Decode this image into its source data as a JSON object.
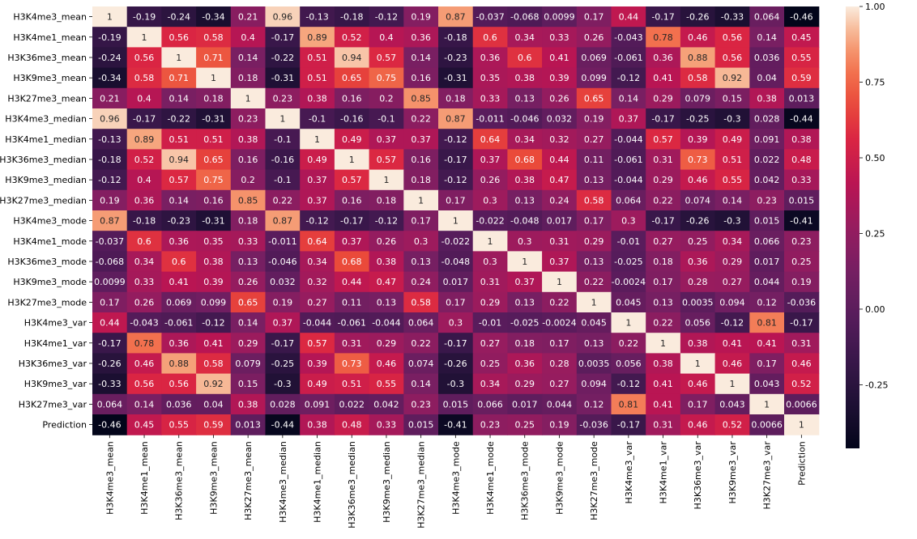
{
  "chart_data": {
    "type": "heatmap",
    "title": "",
    "xlabel": "",
    "ylabel": "",
    "labels": [
      "H3K4me3_mean",
      "H3K4me1_mean",
      "H3K36me3_mean",
      "H3K9me3_mean",
      "H3K27me3_mean",
      "H3K4me3_median",
      "H3K4me1_median",
      "H3K36me3_median",
      "H3K9me3_median",
      "H3K27me3_median",
      "H3K4me3_mode",
      "H3K4me1_mode",
      "H3K36me3_mode",
      "H3K9me3_mode",
      "H3K27me3_mode",
      "H3K4me3_var",
      "H3K4me1_var",
      "H3K36me3_var",
      "H3K9me3_var",
      "H3K27me3_var",
      "Prediction"
    ],
    "values": [
      [
        1,
        -0.19,
        -0.24,
        -0.34,
        0.21,
        0.96,
        -0.13,
        -0.18,
        -0.12,
        0.19,
        0.87,
        -0.037,
        -0.068,
        0.0099,
        0.17,
        0.44,
        -0.17,
        -0.26,
        -0.33,
        0.064,
        -0.46
      ],
      [
        -0.19,
        1,
        0.56,
        0.58,
        0.4,
        -0.17,
        0.89,
        0.52,
        0.4,
        0.36,
        -0.18,
        0.6,
        0.34,
        0.33,
        0.26,
        -0.043,
        0.78,
        0.46,
        0.56,
        0.14,
        0.45
      ],
      [
        -0.24,
        0.56,
        1,
        0.71,
        0.14,
        -0.22,
        0.51,
        0.94,
        0.57,
        0.14,
        -0.23,
        0.36,
        0.6,
        0.41,
        0.069,
        -0.061,
        0.36,
        0.88,
        0.56,
        0.036,
        0.55
      ],
      [
        -0.34,
        0.58,
        0.71,
        1,
        0.18,
        -0.31,
        0.51,
        0.65,
        0.75,
        0.16,
        -0.31,
        0.35,
        0.38,
        0.39,
        0.099,
        -0.12,
        0.41,
        0.58,
        0.92,
        0.04,
        0.59
      ],
      [
        0.21,
        0.4,
        0.14,
        0.18,
        1,
        0.23,
        0.38,
        0.16,
        0.2,
        0.85,
        0.18,
        0.33,
        0.13,
        0.26,
        0.65,
        0.14,
        0.29,
        0.079,
        0.15,
        0.38,
        0.013
      ],
      [
        0.96,
        -0.17,
        -0.22,
        -0.31,
        0.23,
        1,
        -0.1,
        -0.16,
        -0.1,
        0.22,
        0.87,
        -0.011,
        -0.046,
        0.032,
        0.19,
        0.37,
        -0.17,
        -0.25,
        -0.3,
        0.028,
        -0.44
      ],
      [
        -0.13,
        0.89,
        0.51,
        0.51,
        0.38,
        -0.1,
        1,
        0.49,
        0.37,
        0.37,
        -0.12,
        0.64,
        0.34,
        0.32,
        0.27,
        -0.044,
        0.57,
        0.39,
        0.49,
        0.091,
        0.38
      ],
      [
        -0.18,
        0.52,
        0.94,
        0.65,
        0.16,
        -0.16,
        0.49,
        1,
        0.57,
        0.16,
        -0.17,
        0.37,
        0.68,
        0.44,
        0.11,
        -0.061,
        0.31,
        0.73,
        0.51,
        0.022,
        0.48
      ],
      [
        -0.12,
        0.4,
        0.57,
        0.75,
        0.2,
        -0.1,
        0.37,
        0.57,
        1,
        0.18,
        -0.12,
        0.26,
        0.38,
        0.47,
        0.13,
        -0.044,
        0.29,
        0.46,
        0.55,
        0.042,
        0.33
      ],
      [
        0.19,
        0.36,
        0.14,
        0.16,
        0.85,
        0.22,
        0.37,
        0.16,
        0.18,
        1,
        0.17,
        0.3,
        0.13,
        0.24,
        0.58,
        0.064,
        0.22,
        0.074,
        0.14,
        0.23,
        0.015
      ],
      [
        0.87,
        -0.18,
        -0.23,
        -0.31,
        0.18,
        0.87,
        -0.12,
        -0.17,
        -0.12,
        0.17,
        1,
        -0.022,
        -0.048,
        0.017,
        0.17,
        0.3,
        -0.17,
        -0.26,
        -0.3,
        0.015,
        -0.41
      ],
      [
        -0.037,
        0.6,
        0.36,
        0.35,
        0.33,
        -0.011,
        0.64,
        0.37,
        0.26,
        0.3,
        -0.022,
        1,
        0.3,
        0.31,
        0.29,
        -0.01,
        0.27,
        0.25,
        0.34,
        0.066,
        0.23
      ],
      [
        -0.068,
        0.34,
        0.6,
        0.38,
        0.13,
        -0.046,
        0.34,
        0.68,
        0.38,
        0.13,
        -0.048,
        0.3,
        1,
        0.37,
        0.13,
        -0.025,
        0.18,
        0.36,
        0.29,
        0.017,
        0.25
      ],
      [
        0.0099,
        0.33,
        0.41,
        0.39,
        0.26,
        0.032,
        0.32,
        0.44,
        0.47,
        0.24,
        0.017,
        0.31,
        0.37,
        1,
        0.22,
        -0.0024,
        0.17,
        0.28,
        0.27,
        0.044,
        0.19
      ],
      [
        0.17,
        0.26,
        0.069,
        0.099,
        0.65,
        0.19,
        0.27,
        0.11,
        0.13,
        0.58,
        0.17,
        0.29,
        0.13,
        0.22,
        1,
        0.045,
        0.13,
        0.0035,
        0.094,
        0.12,
        -0.036
      ],
      [
        0.44,
        -0.043,
        -0.061,
        -0.12,
        0.14,
        0.37,
        -0.044,
        -0.061,
        -0.044,
        0.064,
        0.3,
        -0.01,
        -0.025,
        -0.0024,
        0.045,
        1,
        0.22,
        0.056,
        -0.12,
        0.81,
        -0.17
      ],
      [
        -0.17,
        0.78,
        0.36,
        0.41,
        0.29,
        -0.17,
        0.57,
        0.31,
        0.29,
        0.22,
        -0.17,
        0.27,
        0.18,
        0.17,
        0.13,
        0.22,
        1,
        0.38,
        0.41,
        0.41,
        0.31
      ],
      [
        -0.26,
        0.46,
        0.88,
        0.58,
        0.079,
        -0.25,
        0.39,
        0.73,
        0.46,
        0.074,
        -0.26,
        0.25,
        0.36,
        0.28,
        0.0035,
        0.056,
        0.38,
        1,
        0.46,
        0.17,
        0.46
      ],
      [
        -0.33,
        0.56,
        0.56,
        0.92,
        0.15,
        -0.3,
        0.49,
        0.51,
        0.55,
        0.14,
        -0.3,
        0.34,
        0.29,
        0.27,
        0.094,
        -0.12,
        0.41,
        0.46,
        1,
        0.043,
        0.52
      ],
      [
        0.064,
        0.14,
        0.036,
        0.04,
        0.38,
        0.028,
        0.091,
        0.022,
        0.042,
        0.23,
        0.015,
        0.066,
        0.017,
        0.044,
        0.12,
        0.81,
        0.41,
        0.17,
        0.043,
        1,
        0.0066
      ],
      [
        -0.46,
        0.45,
        0.55,
        0.59,
        0.013,
        -0.44,
        0.38,
        0.48,
        0.33,
        0.015,
        -0.41,
        0.23,
        0.25,
        0.19,
        -0.036,
        -0.17,
        0.31,
        0.46,
        0.52,
        0.0066,
        1
      ]
    ],
    "colorbar": {
      "colormap": "rocket",
      "vmin": -0.46,
      "vmax": 1.0,
      "ticks": [
        "-0.25",
        "0.00",
        "0.25",
        "0.50",
        "0.75",
        "1.00"
      ],
      "tick_values": [
        -0.25,
        0,
        0.25,
        0.5,
        0.75,
        1.0
      ]
    },
    "grid": false,
    "legend": "colorbar-right"
  }
}
